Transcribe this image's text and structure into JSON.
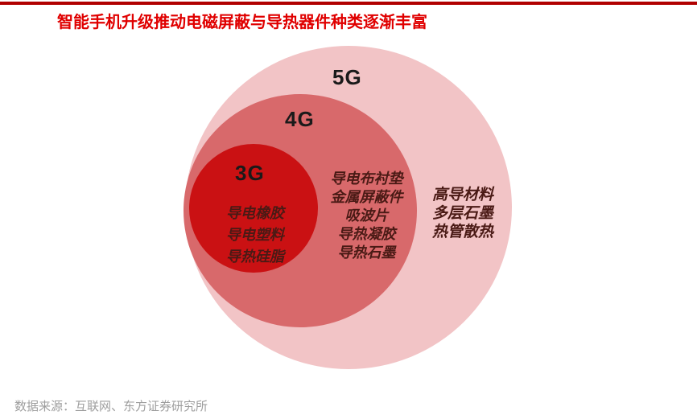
{
  "header": {
    "title": "智能手机升级推动电磁屏蔽与导热器件种类逐渐丰富"
  },
  "chart_data": {
    "type": "venn",
    "title": "智能手机升级推动电磁屏蔽与导热器件种类逐渐丰富",
    "layout": "nested concentric circles, tangent at left; 3G inside 4G inside 5G",
    "rings": [
      {
        "label": "5G",
        "color": "#f2c4c6",
        "items": [
          "高导材料",
          "多层石墨",
          "热管散热"
        ]
      },
      {
        "label": "4G",
        "color": "#d8696b",
        "items": [
          "导电布衬垫",
          "金属屏蔽件",
          "吸波片",
          "导热凝胶",
          "导热石墨"
        ]
      },
      {
        "label": "3G",
        "color": "#ca1113",
        "items": [
          "导电橡胶",
          "导电塑料",
          "导热硅脂"
        ]
      }
    ],
    "colors": {
      "title_red": "#e00000",
      "top_rule_red": "#b00000",
      "item_text": "#4a1a15",
      "ring_label_text": "#1a1a1a",
      "source_gray": "#9e9e9e"
    }
  },
  "footer": {
    "source": "数据来源：互联网、东方证券研究所"
  }
}
